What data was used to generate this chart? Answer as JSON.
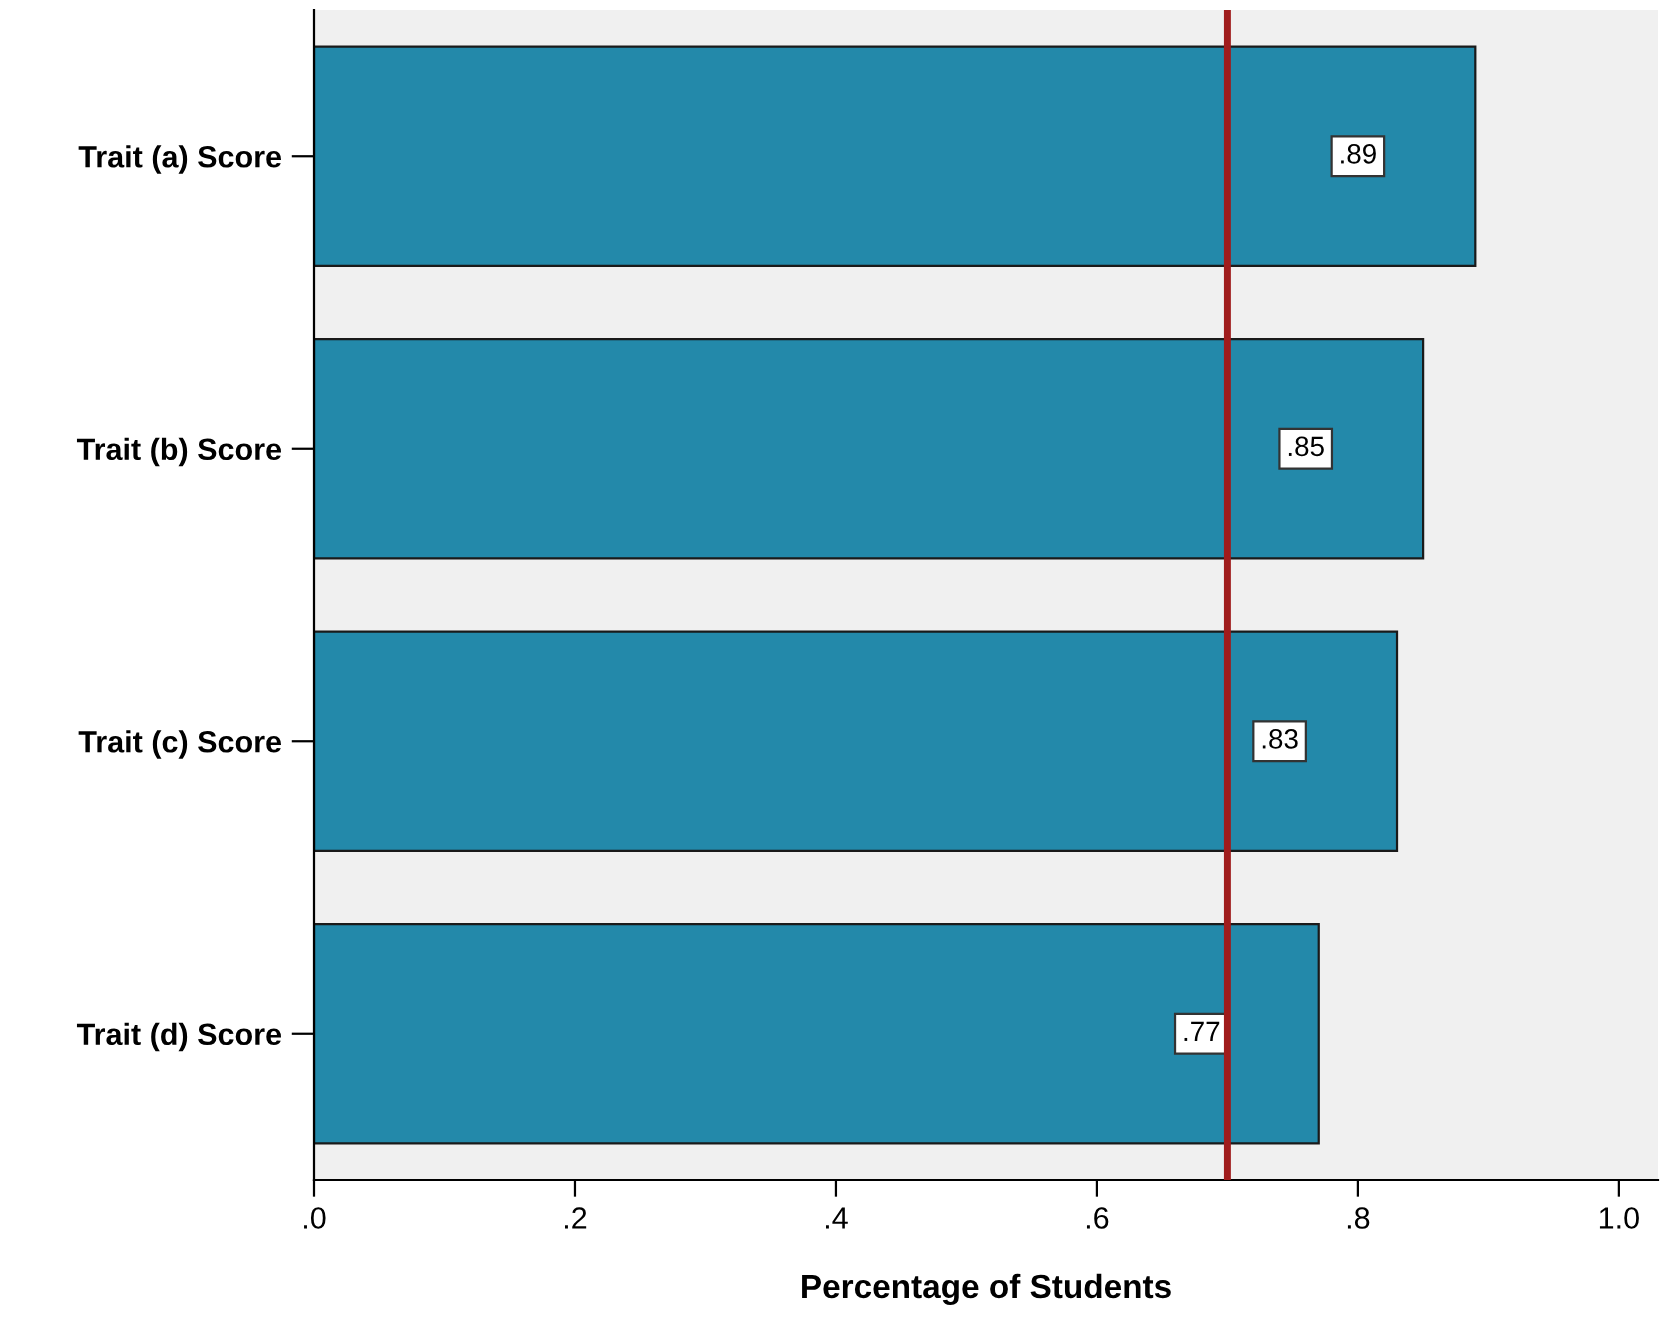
{
  "chart_data": {
    "type": "bar",
    "orientation": "horizontal",
    "xlabel": "Percentage of Students",
    "categories": [
      "Trait (a) Score",
      "Trait (b) Score",
      "Trait (c) Score",
      "Trait (d) Score"
    ],
    "values": [
      0.89,
      0.85,
      0.83,
      0.77
    ],
    "value_labels": [
      ".89",
      ".85",
      ".83",
      ".77"
    ],
    "color": "#2389aa",
    "xlim": [
      0,
      1.03
    ],
    "xticks": [
      {
        "value": 0,
        "label": ".0"
      },
      {
        "value": 0.2,
        "label": ".2"
      },
      {
        "value": 0.4,
        "label": ".4"
      },
      {
        "value": 0.6,
        "label": ".6"
      },
      {
        "value": 0.8,
        "label": ".8"
      },
      {
        "value": 1.0,
        "label": "1.0"
      }
    ],
    "ref_lines": [
      {
        "axis": "x",
        "value": 0.7,
        "color": "#a01c1c"
      }
    ],
    "grid": false,
    "legend": false
  }
}
